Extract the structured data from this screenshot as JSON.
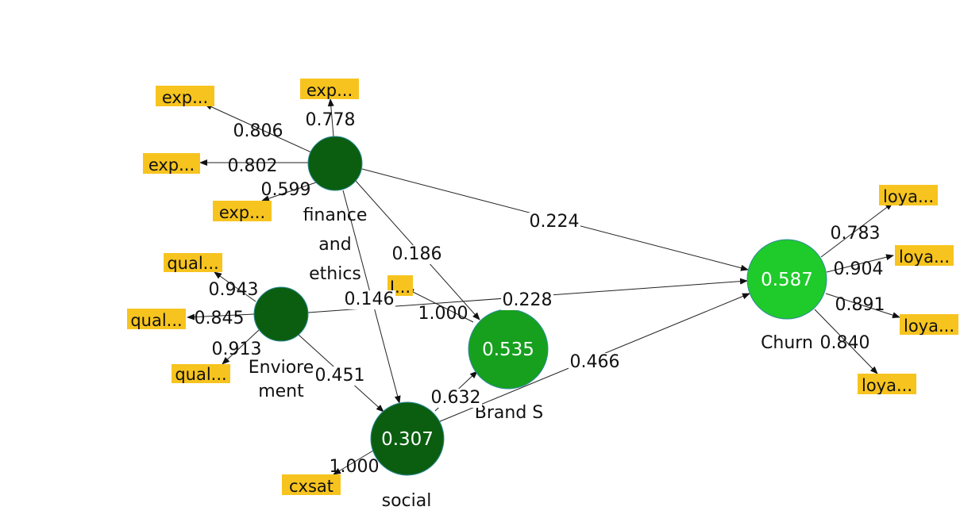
{
  "colors": {
    "indicator_fill": "#F7C41F",
    "construct_dark": "#0B5E10",
    "construct_mid": "#16A01E",
    "construct_light": "#1FCB2A",
    "construct_stroke": "#2E8B9A"
  },
  "constructs": [
    {
      "id": "fin",
      "name_lines": [
        "finance",
        "and",
        "ethics"
      ],
      "value": "",
      "shade": "dark"
    },
    {
      "id": "env",
      "name_lines": [
        "Enviore",
        "ment"
      ],
      "value": "",
      "shade": "dark"
    },
    {
      "id": "soc",
      "name_lines": [
        "social"
      ],
      "value": "0.307",
      "shade": "dark"
    },
    {
      "id": "brand",
      "name_lines": [
        "Brand S"
      ],
      "value": "0.535",
      "shade": "mid"
    },
    {
      "id": "churn",
      "name_lines": [
        "Churn"
      ],
      "value": "0.587",
      "shade": "light"
    }
  ],
  "indicators": [
    {
      "id": "i_exp1",
      "label": "exp..."
    },
    {
      "id": "i_exp2",
      "label": "exp..."
    },
    {
      "id": "i_exp3",
      "label": "exp..."
    },
    {
      "id": "i_exp4",
      "label": "exp..."
    },
    {
      "id": "i_qual1",
      "label": "qual..."
    },
    {
      "id": "i_qual2",
      "label": "qual..."
    },
    {
      "id": "i_qual3",
      "label": "qual..."
    },
    {
      "id": "i_brand",
      "label": "I..."
    },
    {
      "id": "i_cxsat",
      "label": "cxsat"
    },
    {
      "id": "i_loy1",
      "label": "loya..."
    },
    {
      "id": "i_loy2",
      "label": "loya..."
    },
    {
      "id": "i_loy3",
      "label": "loya..."
    },
    {
      "id": "i_loy4",
      "label": "loya..."
    }
  ],
  "paths": [
    {
      "id": "fin_churn",
      "from": "fin",
      "to": "churn",
      "coef": "0.224"
    },
    {
      "id": "fin_brand",
      "from": "fin",
      "to": "brand",
      "coef": "0.186"
    },
    {
      "id": "fin_soc",
      "from": "fin",
      "to": "soc",
      "coef": "0.146"
    },
    {
      "id": "env_churn",
      "from": "env",
      "to": "churn",
      "coef": "0.228"
    },
    {
      "id": "env_soc",
      "from": "env",
      "to": "soc",
      "coef": "0.451"
    },
    {
      "id": "soc_churn",
      "from": "soc",
      "to": "churn",
      "coef": "0.466"
    },
    {
      "id": "soc_brand",
      "from": "soc",
      "to": "brand",
      "coef": "0.632"
    }
  ],
  "loadings": [
    {
      "id": "l_exp1",
      "from": "fin",
      "to": "i_exp1",
      "coef": "0.806"
    },
    {
      "id": "l_exp2",
      "from": "fin",
      "to": "i_exp2",
      "coef": "0.778"
    },
    {
      "id": "l_exp3",
      "from": "fin",
      "to": "i_exp3",
      "coef": "0.802"
    },
    {
      "id": "l_exp4",
      "from": "fin",
      "to": "i_exp4",
      "coef": "0.599"
    },
    {
      "id": "l_qual1",
      "from": "env",
      "to": "i_qual1",
      "coef": "0.943"
    },
    {
      "id": "l_qual2",
      "from": "env",
      "to": "i_qual2",
      "coef": "0.845"
    },
    {
      "id": "l_qual3",
      "from": "env",
      "to": "i_qual3",
      "coef": "0.913"
    },
    {
      "id": "l_brand",
      "from": "brand",
      "to": "i_brand",
      "coef": "1.000"
    },
    {
      "id": "l_cxsat",
      "from": "soc",
      "to": "i_cxsat",
      "coef": "1.000"
    },
    {
      "id": "l_loy1",
      "from": "churn",
      "to": "i_loy1",
      "coef": "0.783"
    },
    {
      "id": "l_loy2",
      "from": "churn",
      "to": "i_loy2",
      "coef": "0.904"
    },
    {
      "id": "l_loy3",
      "from": "churn",
      "to": "i_loy3",
      "coef": "0.891"
    },
    {
      "id": "l_loy4",
      "from": "churn",
      "to": "i_loy4",
      "coef": "0.840"
    }
  ]
}
